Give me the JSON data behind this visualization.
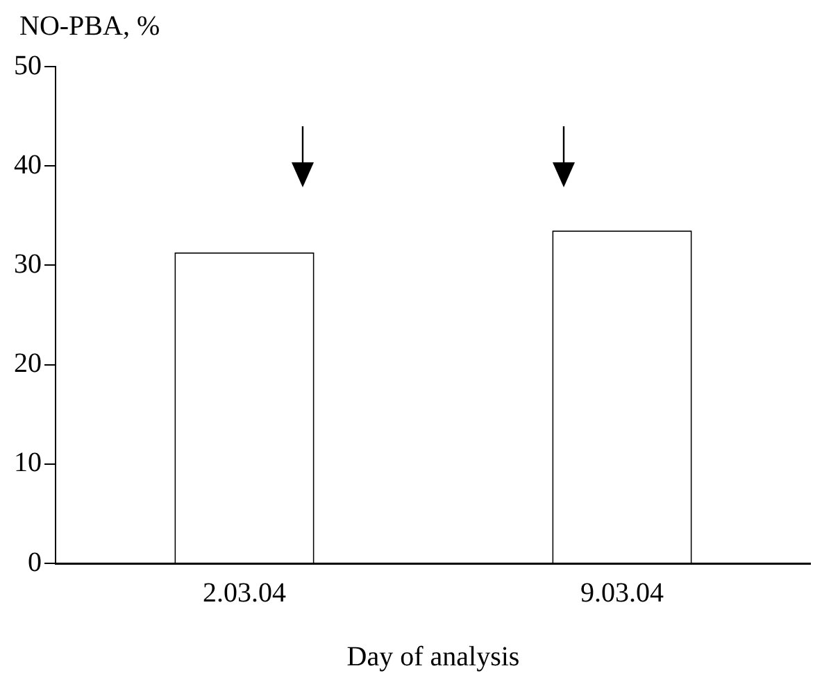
{
  "chart_data": {
    "type": "bar",
    "ylabel": "NO-PBA, %",
    "xlabel": "Day of analysis",
    "categories": [
      "2.03.04",
      "9.03.04"
    ],
    "values": [
      31.3,
      33.5
    ],
    "color": "#ffffff",
    "ylim": [
      0,
      50
    ],
    "yticks": [
      0,
      10,
      20,
      30,
      40,
      50
    ],
    "grid": false,
    "legend": false
  }
}
